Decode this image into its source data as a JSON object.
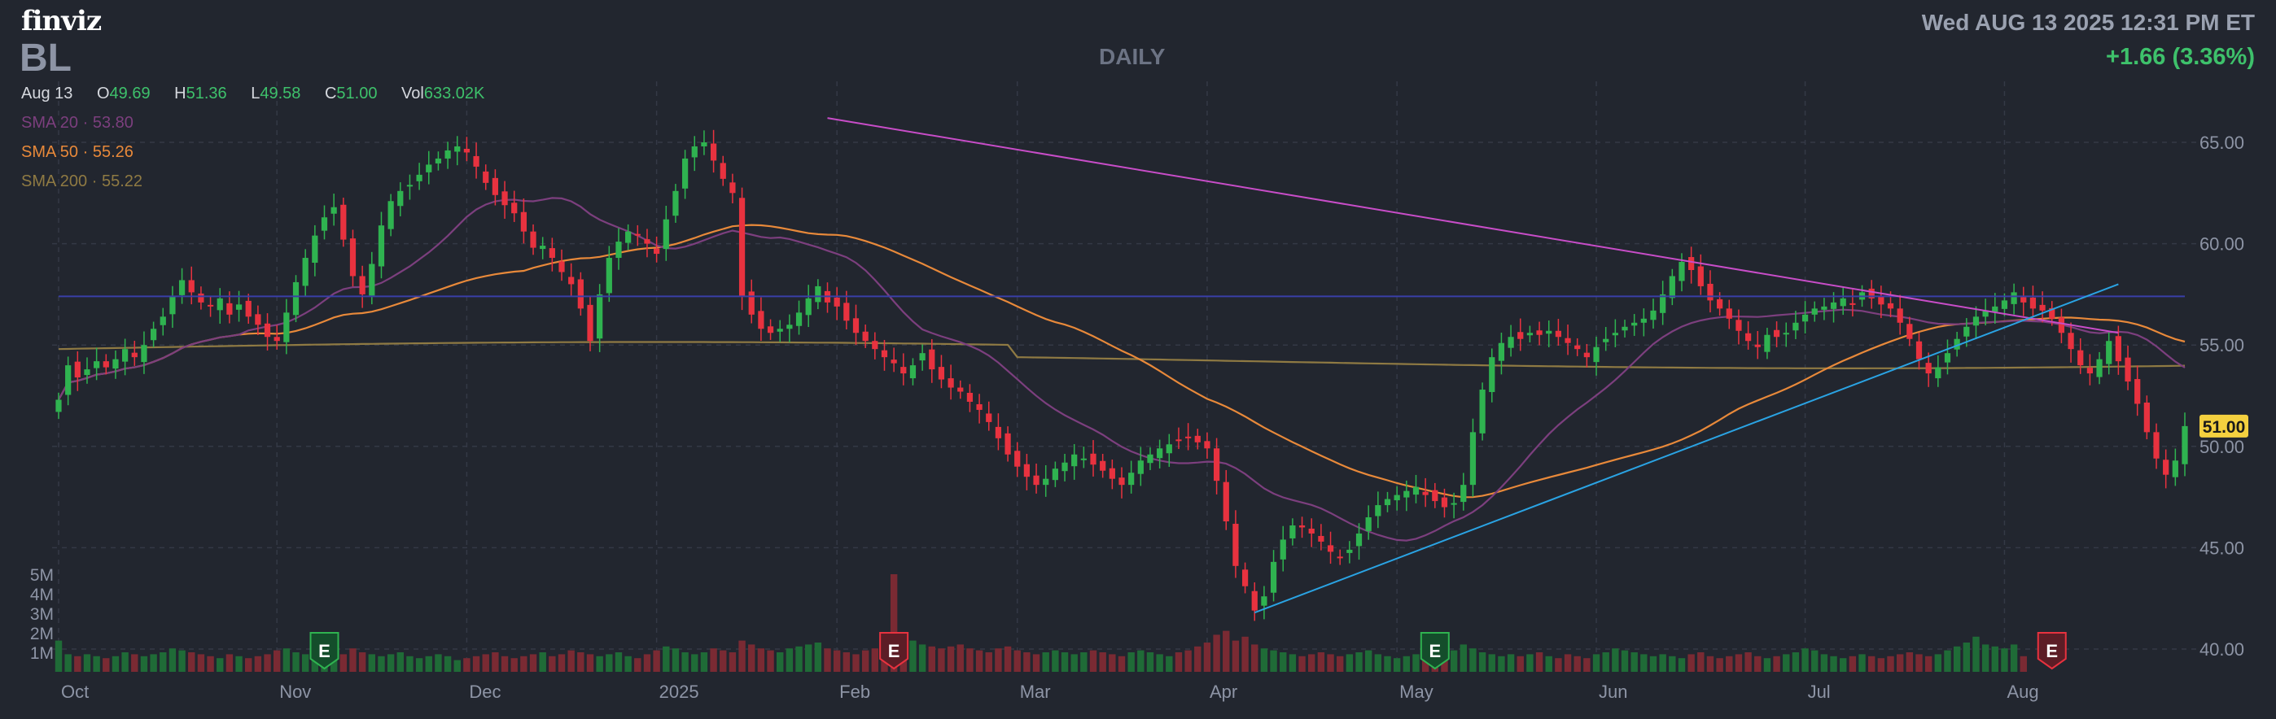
{
  "header": {
    "logo": "finviz",
    "ticker": "BL",
    "period": "DAILY",
    "datetime": "Wed AUG 13 2025 12:31 PM ET",
    "change": "+1.66 (3.36%)"
  },
  "ohlc": {
    "date": "Aug 13",
    "o_label": "O",
    "o": "49.69",
    "h_label": "H",
    "h": "51.36",
    "l_label": "L",
    "l": "49.58",
    "c_label": "C",
    "c": "51.00",
    "vol_label": "Vol",
    "vol": "633.02K"
  },
  "indicators": {
    "sma20_label": "SMA 20",
    "sma20": "53.80",
    "sma50_label": "SMA 50",
    "sma50": "55.26",
    "sma200_label": "SMA 200",
    "sma200": "55.22",
    "sep": "·"
  },
  "colors": {
    "background": "#22262f",
    "up": "#2fb350",
    "down": "#e8323f",
    "sma20": "#7c3f7e",
    "sma50": "#e8893a",
    "sma200": "#8f7a43",
    "resistance": "#c84dc8",
    "support": "#2aa3e3",
    "horizontal": "#3a3fa8",
    "price_tag": "#f4d03f"
  },
  "chart_data": {
    "type": "candlestick",
    "y_ticks": [
      "65.00",
      "60.00",
      "55.00",
      "50.00",
      "45.00",
      "40.00"
    ],
    "ylim": [
      40,
      65
    ],
    "x_ticks": [
      "Oct",
      "Nov",
      "Dec",
      "2025",
      "Feb",
      "Mar",
      "Apr",
      "May",
      "Jun",
      "Jul",
      "Aug"
    ],
    "x_tick_index": [
      0,
      23,
      43,
      63,
      82,
      101,
      121,
      141,
      162,
      184,
      205
    ],
    "volume_ticks": [
      "5M",
      "4M",
      "3M",
      "2M",
      "1M"
    ],
    "last_price": "51.00",
    "earnings_markers": [
      {
        "index": 28,
        "type": "positive",
        "label": "E"
      },
      {
        "index": 88,
        "type": "negative",
        "label": "E"
      },
      {
        "index": 145,
        "type": "positive",
        "label": "E"
      },
      {
        "index": 210,
        "type": "negative",
        "label": "E"
      }
    ],
    "horizontal_line": 57.4,
    "trendlines": [
      {
        "name": "resistance",
        "from": [
          81,
          66.2
        ],
        "to": [
          217,
          55.6
        ]
      },
      {
        "name": "support",
        "from": [
          126,
          41.8
        ],
        "to": [
          217,
          58.0
        ]
      }
    ],
    "close": [
      52.3,
      54.0,
      53.4,
      53.8,
      54.2,
      53.9,
      54.3,
      54.8,
      54.4,
      55.0,
      55.8,
      56.4,
      57.4,
      58.2,
      57.6,
      57.1,
      56.9,
      57.3,
      56.5,
      57.0,
      56.4,
      56.0,
      55.4,
      55.2,
      56.6,
      58.1,
      59.3,
      60.4,
      61.3,
      61.8,
      60.2,
      58.4,
      57.5,
      59.0,
      60.9,
      62.1,
      62.6,
      62.9,
      63.4,
      63.9,
      64.2,
      64.6,
      64.8,
      64.5,
      63.8,
      63.0,
      62.4,
      61.9,
      61.5,
      60.6,
      59.8,
      59.9,
      59.3,
      58.6,
      58.0,
      56.8,
      55.2,
      57.5,
      59.3,
      60.1,
      60.6,
      60.4,
      60.0,
      59.5,
      61.2,
      62.6,
      64.2,
      64.8,
      65.0,
      64.1,
      63.2,
      62.5,
      57.4,
      56.5,
      55.8,
      55.6,
      55.8,
      56.0,
      56.6,
      57.3,
      57.9,
      57.1,
      56.9,
      56.2,
      55.6,
      55.2,
      54.8,
      54.4,
      54.1,
      53.6,
      54.0,
      54.6,
      53.8,
      53.3,
      52.9,
      52.7,
      52.2,
      51.8,
      51.2,
      50.4,
      49.6,
      49.0,
      48.5,
      48.1,
      48.4,
      48.9,
      49.2,
      49.6,
      49.4,
      49.1,
      48.8,
      48.4,
      48.1,
      48.7,
      49.3,
      49.6,
      49.9,
      50.1,
      50.3,
      50.4,
      50.2,
      49.9,
      48.3,
      46.3,
      44.1,
      43.1,
      41.9,
      42.6,
      44.3,
      45.4,
      46.1,
      46.0,
      45.7,
      45.3,
      44.8,
      44.5,
      44.9,
      45.7,
      46.5,
      47.1,
      47.4,
      47.6,
      47.8,
      48.0,
      47.6,
      47.3,
      47.0,
      47.2,
      48.1,
      50.7,
      52.8,
      54.4,
      55.1,
      55.4,
      55.3,
      55.6,
      55.5,
      55.7,
      55.4,
      55.1,
      54.8,
      54.4,
      54.9,
      55.3,
      55.6,
      55.9,
      56.1,
      56.3,
      56.7,
      57.5,
      58.4,
      59.1,
      58.7,
      57.9,
      57.2,
      56.8,
      56.3,
      55.7,
      55.2,
      54.9,
      55.5,
      55.4,
      55.6,
      56.1,
      56.5,
      56.8,
      56.9,
      57.1,
      57.3,
      57.0,
      57.6,
      57.3,
      57.0,
      56.8,
      56.1,
      55.3,
      54.3,
      53.6,
      53.9,
      54.6,
      55.3,
      55.9,
      56.4,
      56.7,
      56.9,
      57.2,
      57.6,
      57.1,
      56.8,
      56.7,
      56.3,
      55.6,
      54.8,
      54.0,
      53.6,
      54.3,
      55.2,
      54.2,
      53.2,
      52.1,
      50.7,
      49.4,
      48.6,
      49.3,
      51.0
    ],
    "volume_m": [
      1.6,
      0.9,
      0.8,
      0.9,
      0.8,
      0.7,
      0.8,
      1.0,
      0.9,
      0.8,
      0.9,
      1.0,
      1.2,
      1.1,
      1.0,
      0.9,
      0.8,
      0.7,
      0.9,
      0.8,
      0.7,
      0.8,
      0.9,
      1.1,
      1.2,
      1.0,
      0.9,
      1.1,
      1.3,
      1.0,
      0.9,
      1.2,
      1.0,
      0.9,
      0.8,
      0.9,
      1.0,
      0.8,
      0.7,
      0.8,
      0.9,
      0.8,
      0.6,
      0.7,
      0.8,
      0.9,
      1.0,
      0.8,
      0.7,
      0.8,
      0.9,
      1.0,
      0.8,
      0.9,
      1.1,
      1.0,
      0.9,
      0.8,
      0.9,
      1.0,
      0.8,
      0.7,
      0.9,
      1.1,
      1.3,
      1.2,
      1.0,
      0.9,
      1.0,
      1.2,
      1.1,
      1.0,
      1.6,
      1.4,
      1.2,
      1.1,
      1.0,
      1.2,
      1.3,
      1.4,
      1.5,
      1.2,
      1.1,
      1.0,
      0.9,
      1.1,
      1.2,
      1.0,
      5.0,
      1.7,
      1.6,
      1.4,
      1.3,
      1.2,
      1.3,
      1.4,
      1.2,
      1.1,
      1.0,
      1.2,
      1.3,
      1.1,
      1.0,
      0.9,
      1.0,
      1.1,
      1.0,
      0.9,
      1.0,
      1.1,
      1.0,
      0.9,
      0.8,
      1.0,
      1.1,
      1.0,
      0.9,
      0.8,
      1.0,
      1.1,
      1.3,
      1.5,
      1.9,
      2.1,
      1.6,
      1.8,
      1.4,
      1.2,
      1.1,
      1.0,
      0.9,
      0.8,
      0.9,
      1.0,
      0.9,
      0.8,
      0.9,
      1.0,
      1.1,
      0.9,
      0.8,
      0.7,
      0.8,
      0.9,
      0.8,
      0.7,
      0.9,
      1.1,
      1.4,
      1.2,
      1.0,
      0.9,
      0.8,
      0.9,
      0.8,
      0.9,
      1.0,
      0.8,
      0.7,
      0.9,
      0.8,
      0.7,
      0.9,
      1.0,
      1.2,
      1.1,
      1.0,
      0.9,
      0.8,
      0.9,
      0.8,
      0.7,
      0.9,
      1.0,
      0.8,
      0.7,
      0.8,
      0.9,
      1.0,
      0.8,
      0.7,
      0.8,
      0.9,
      1.0,
      1.2,
      1.1,
      0.9,
      0.8,
      0.7,
      0.8,
      0.9,
      0.8,
      0.7,
      0.8,
      0.9,
      1.0,
      0.9,
      0.8,
      0.9,
      1.1,
      1.3,
      1.5,
      1.8,
      1.4,
      1.3,
      1.2,
      1.4,
      0.8
    ]
  }
}
